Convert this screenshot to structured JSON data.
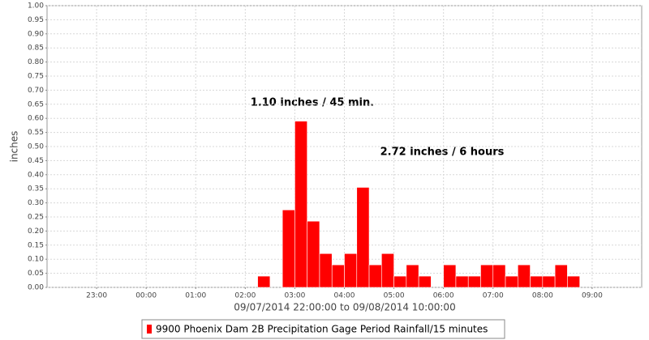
{
  "chart_data": {
    "type": "histogram",
    "y_label": "inches",
    "x_label": "09/07/2014 22:00:00 to 09/08/2014 10:00:00",
    "annotations": [
      "1.10 inches / 45 min.",
      "2.72 inches / 6 hours"
    ],
    "x": [
      "09/08/2014 02:15",
      "09/08/2014 02:45",
      "09/08/2014 03:00",
      "09/08/2014 03:15",
      "09/08/2014 03:30",
      "09/08/2014 03:45",
      "09/08/2014 04:00",
      "09/08/2014 04:15",
      "09/08/2014 04:30",
      "09/08/2014 04:45",
      "09/08/2014 05:00",
      "09/08/2014 05:15",
      "09/08/2014 05:30",
      "09/08/2014 06:00",
      "09/08/2014 06:15",
      "09/08/2014 06:30",
      "09/08/2014 06:45",
      "09/08/2014 07:00",
      "09/08/2014 07:15",
      "09/08/2014 07:30",
      "09/08/2014 07:45",
      "09/08/2014 08:00",
      "09/08/2014 08:15",
      "09/08/2014 08:30"
    ],
    "series": [
      {
        "name": "9900  Phoenix Dam 2B Precipitation Gage Period Rainfall/15 minutes",
        "color": "#ff0000",
        "values": [
          0.04,
          0.275,
          0.59,
          0.235,
          0.12,
          0.08,
          0.12,
          0.355,
          0.08,
          0.12,
          0.04,
          0.08,
          0.04,
          0.08,
          0.04,
          0.04,
          0.08,
          0.08,
          0.04,
          0.08,
          0.04,
          0.04,
          0.08,
          0.04
        ]
      }
    ],
    "xlim": [
      "09/07/2014 22:00",
      "09/08/2014 10:00"
    ],
    "xticks": [
      {
        "value": "09/07/2014 23:00",
        "label": "23:00"
      },
      {
        "value": "09/08/2014 00:00",
        "label": "00:00"
      },
      {
        "value": "09/08/2014 01:00",
        "label": "01:00"
      },
      {
        "value": "09/08/2014 02:00",
        "label": "02:00"
      },
      {
        "value": "09/08/2014 03:00",
        "label": "03:00"
      },
      {
        "value": "09/08/2014 04:00",
        "label": "04:00"
      },
      {
        "value": "09/08/2014 05:00",
        "label": "05:00"
      },
      {
        "value": "09/08/2014 06:00",
        "label": "06:00"
      },
      {
        "value": "09/08/2014 07:00",
        "label": "07:00"
      },
      {
        "value": "09/08/2014 08:00",
        "label": "08:00"
      },
      {
        "value": "09/08/2014 09:00",
        "label": "09:00"
      }
    ],
    "ylim": [
      0,
      1
    ],
    "yticks": [
      {
        "value": 0,
        "label": "0.00"
      },
      {
        "value": 0.05,
        "label": "0.05"
      },
      {
        "value": 0.1,
        "label": "0.10"
      },
      {
        "value": 0.15,
        "label": "0.15"
      },
      {
        "value": 0.2,
        "label": "0.20"
      },
      {
        "value": 0.25,
        "label": "0.25"
      },
      {
        "value": 0.3,
        "label": "0.30"
      },
      {
        "value": 0.35,
        "label": "0.35"
      },
      {
        "value": 0.4,
        "label": "0.40"
      },
      {
        "value": 0.45,
        "label": "0.45"
      },
      {
        "value": 0.5,
        "label": "0.50"
      },
      {
        "value": 0.55,
        "label": "0.55"
      },
      {
        "value": 0.6,
        "label": "0.60"
      },
      {
        "value": 0.65,
        "label": "0.65"
      },
      {
        "value": 0.7,
        "label": "0.70"
      },
      {
        "value": 0.75,
        "label": "0.75"
      },
      {
        "value": 0.8,
        "label": "0.80"
      },
      {
        "value": 0.85,
        "label": "0.85"
      },
      {
        "value": 0.9,
        "label": "0.90"
      },
      {
        "value": 0.95,
        "label": "0.95"
      },
      {
        "value": 1,
        "label": "1.00"
      }
    ],
    "grid": true
  }
}
